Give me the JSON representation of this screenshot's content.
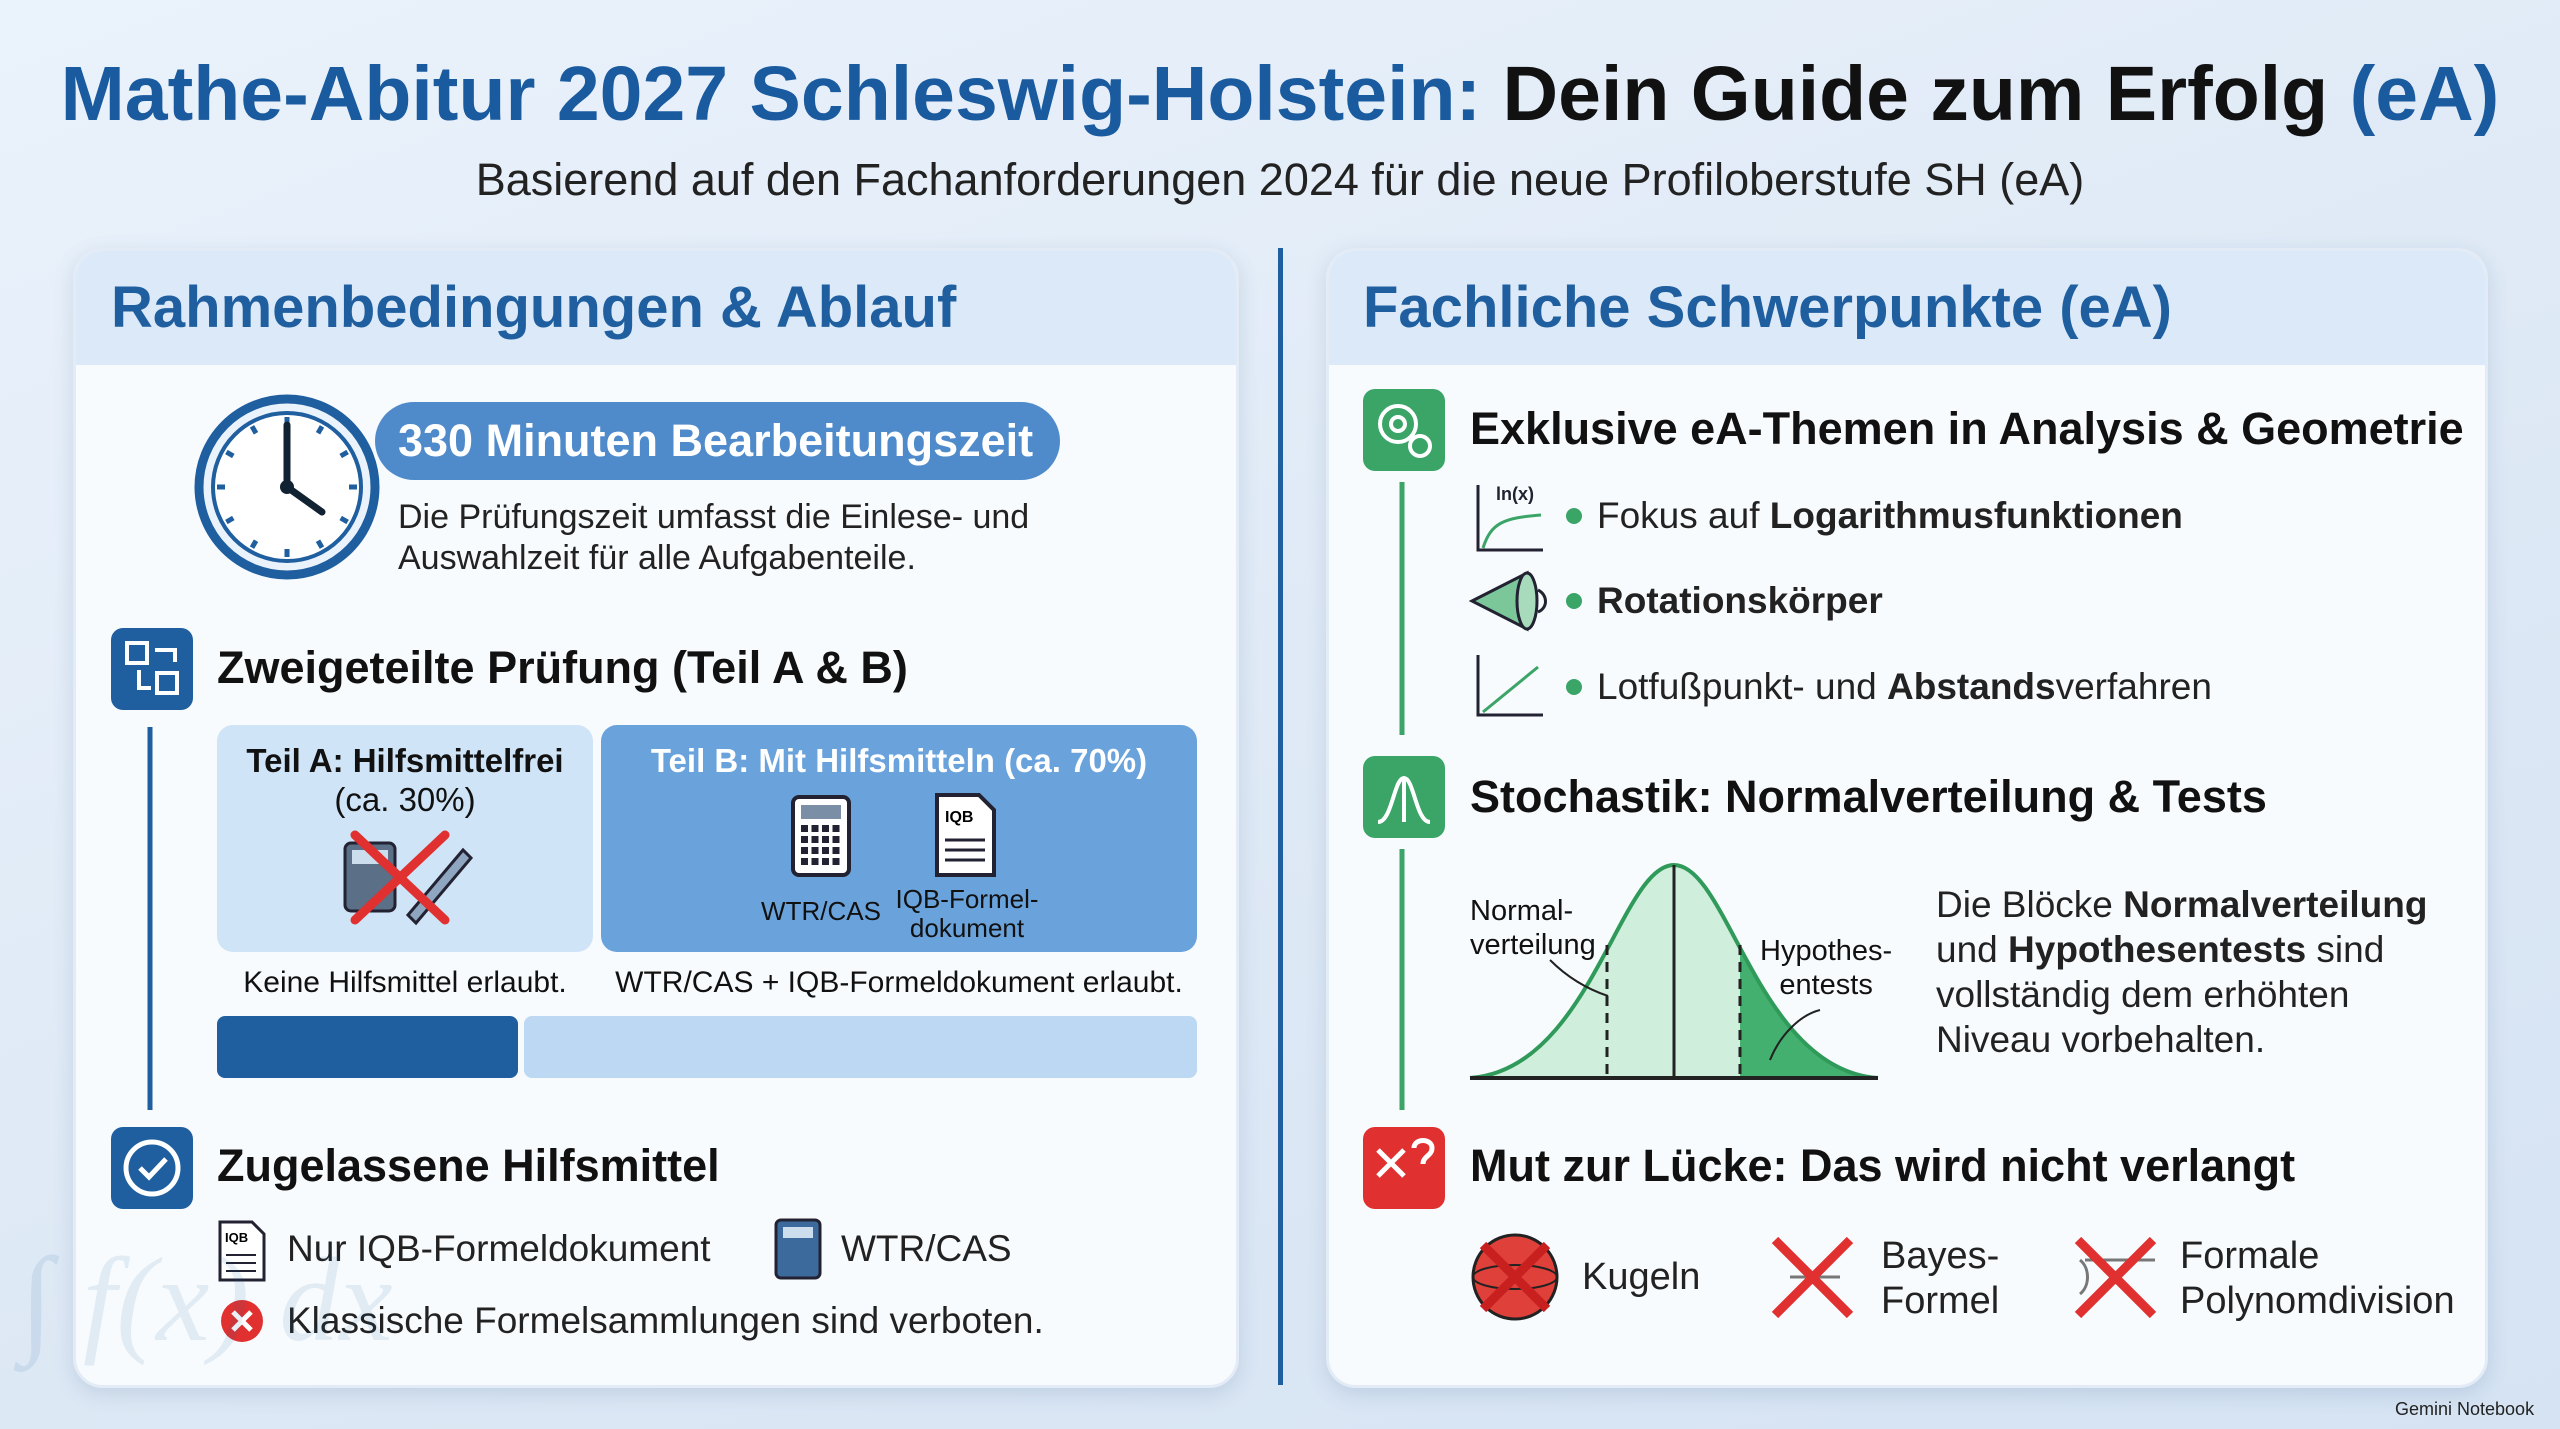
{
  "header": {
    "title_part1": "Mathe-Abitur 2027 Schleswig-Holstein:",
    "title_part2": "Dein Guide zum Erfolg",
    "title_part3": "(eA)",
    "subtitle": "Basierend auf den Fachanforderungen 2024 für die neue Profiloberstufe SH (eA)"
  },
  "left_panel": {
    "title": "Rahmenbedingungen & Ablauf",
    "time": {
      "pill": "330 Minuten Bearbeitungszeit",
      "text": "Die Prüfungszeit umfasst die Einlese- und\nAuswahlzeit für alle Aufgabenteile."
    },
    "exam": {
      "heading": "Zweigeteilte Prüfung (Teil A & B)",
      "part_a": {
        "title": "Teil A: Hilfsmittelfrei",
        "share": "(ca. 30%)",
        "caption": "Keine Hilfsmittel erlaubt."
      },
      "part_b": {
        "title": "Teil B: Mit Hilfsmitteln (ca. 70%)",
        "icon1": "WTR/CAS",
        "icon2": "IQB-Formel-\ndokument",
        "caption": "WTR/CAS + IQB-Formeldokument erlaubt."
      }
    },
    "aids": {
      "heading": "Zugelassene Hilfsmittel",
      "item1": "Nur IQB-Formeldokument",
      "item2": "WTR/CAS",
      "forbidden": "Klassische Formelsammlungen sind verboten."
    },
    "doc_icon_label": "IQB",
    "watermark_formula": "∫ f(x) dx"
  },
  "right_panel": {
    "title": "Fachliche Schwerpunkte (eA)",
    "topics": {
      "heading": "Exklusive eA-Themen in Analysis & Geometrie",
      "icon_label": "ln(x)",
      "bullets": [
        [
          "Fokus auf ",
          "Logarithmusfunktionen"
        ],
        [
          "Rotationskörper"
        ],
        [
          "Lotfußpunkt- und ",
          "Abstands",
          "verfahren"
        ]
      ]
    },
    "stochastics": {
      "heading": "Stochastik: Normalverteilung & Tests",
      "label_left": "Normal-\nverteilung",
      "label_right": "Hypothes-\nentests",
      "text": [
        "Die Blöcke ",
        "Normalverteilung",
        " und ",
        "Hypothesentests",
        " sind vollständig dem erhöhten Niveau vorbehalten."
      ]
    },
    "gaps": {
      "heading": "Mut zur Lücke: Das wird nicht verlangt",
      "item1": "Kugeln",
      "item2": "Bayes-\nFormel",
      "item3": "Formale\nPolynomdivision"
    }
  },
  "footer": {
    "brand": "Gemini Notebook"
  }
}
